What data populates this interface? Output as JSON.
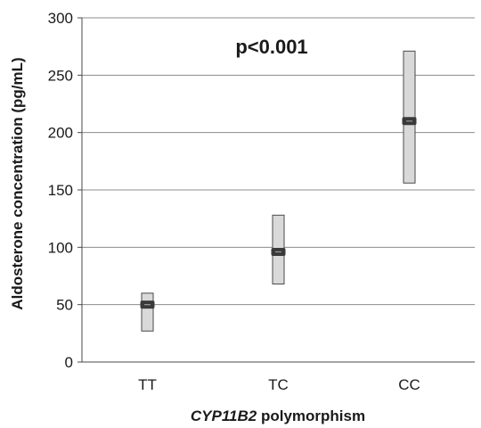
{
  "chart_data": {
    "type": "box",
    "categories": [
      "TT",
      "TC",
      "CC"
    ],
    "series": [
      {
        "ranges": [
          {
            "low": 27,
            "high": 60,
            "median": 50
          },
          {
            "low": 68,
            "high": 128,
            "median": 96
          },
          {
            "low": 156,
            "high": 271,
            "median": 210
          }
        ]
      }
    ],
    "ylabel": "Aldosterone concentration (pg/mL)",
    "xlabel_italic": "CYP11B2",
    "xlabel_rest": " polymorphism",
    "annotation": "p<0.001",
    "ylim": [
      0,
      300
    ],
    "yticks": [
      0,
      50,
      100,
      150,
      200,
      250,
      300
    ],
    "grid": true,
    "colors": {
      "box_fill": "#d9d9d9",
      "box_stroke": "#4a4a4a",
      "median": "#3a3a3a",
      "grid": "#8c8c8c",
      "axis": "#4a4a4a"
    }
  }
}
